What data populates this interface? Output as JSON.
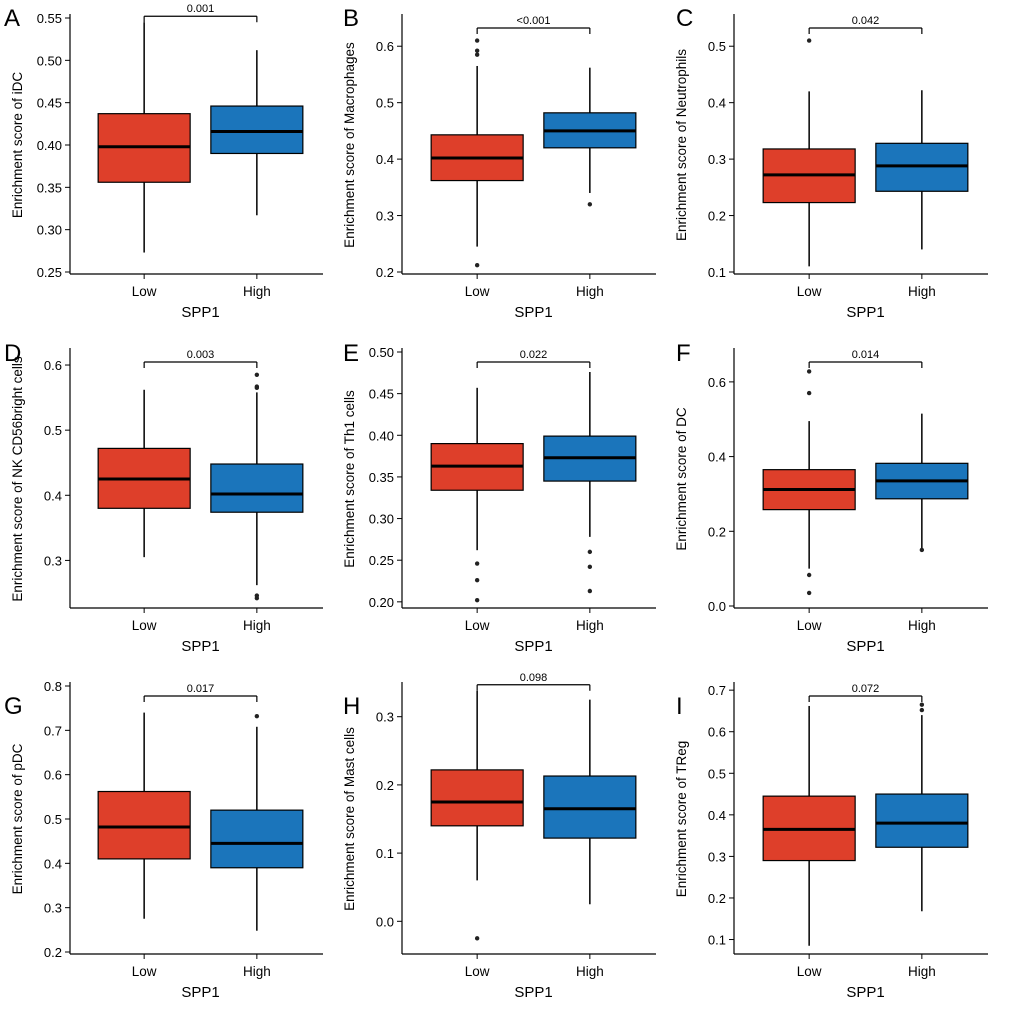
{
  "figure": {
    "colors": {
      "low": "#de3f2a",
      "high": "#1b75bb",
      "outline": "#000000"
    }
  },
  "chart_data": [
    {
      "type": "box",
      "panel_label": "A",
      "ylabel": "Enrichment score of iDC",
      "xlabel": "SPP1",
      "categories": [
        "Low",
        "High"
      ],
      "ylim": [
        0.25,
        0.55
      ],
      "yticks": [
        "0.25",
        "0.30",
        "0.35",
        "0.40",
        "0.45",
        "0.50",
        "0.55"
      ],
      "pvalue": "0.001",
      "boxes": [
        {
          "group": "Low",
          "min": 0.273,
          "q1": 0.356,
          "median": 0.398,
          "q3": 0.437,
          "max": 0.545,
          "outliers": []
        },
        {
          "group": "High",
          "min": 0.317,
          "q1": 0.39,
          "median": 0.416,
          "q3": 0.446,
          "max": 0.512,
          "outliers": []
        }
      ]
    },
    {
      "type": "box",
      "panel_label": "B",
      "ylabel": "Enrichment score of Macrophages",
      "xlabel": "SPP1",
      "categories": [
        "Low",
        "High"
      ],
      "ylim": [
        0.2,
        0.65
      ],
      "yticks": [
        "0.2",
        "0.3",
        "0.4",
        "0.5",
        "0.6"
      ],
      "pvalue": "<0.001",
      "boxes": [
        {
          "group": "Low",
          "min": 0.245,
          "q1": 0.362,
          "median": 0.402,
          "q3": 0.443,
          "max": 0.565,
          "outliers": [
            0.212,
            0.585,
            0.592,
            0.61
          ]
        },
        {
          "group": "High",
          "min": 0.34,
          "q1": 0.42,
          "median": 0.45,
          "q3": 0.482,
          "max": 0.562,
          "outliers": [
            0.32
          ]
        }
      ]
    },
    {
      "type": "box",
      "panel_label": "C",
      "ylabel": "Enrichment score of Neutrophils",
      "xlabel": "SPP1",
      "categories": [
        "Low",
        "High"
      ],
      "ylim": [
        0.1,
        0.55
      ],
      "yticks": [
        "0.1",
        "0.2",
        "0.3",
        "0.4",
        "0.5"
      ],
      "pvalue": "0.042",
      "boxes": [
        {
          "group": "Low",
          "min": 0.11,
          "q1": 0.223,
          "median": 0.272,
          "q3": 0.318,
          "max": 0.42,
          "outliers": [
            0.51
          ]
        },
        {
          "group": "High",
          "min": 0.14,
          "q1": 0.243,
          "median": 0.288,
          "q3": 0.328,
          "max": 0.422,
          "outliers": []
        }
      ]
    },
    {
      "type": "box",
      "panel_label": "D",
      "ylabel": "Enrichment score of NK CD56bright cells",
      "xlabel": "SPP1",
      "categories": [
        "Low",
        "High"
      ],
      "ylim": [
        0.23,
        0.62
      ],
      "yticks": [
        "0.3",
        "0.4",
        "0.5",
        "0.6"
      ],
      "pvalue": "0.003",
      "boxes": [
        {
          "group": "Low",
          "min": 0.305,
          "q1": 0.38,
          "median": 0.425,
          "q3": 0.472,
          "max": 0.562,
          "outliers": []
        },
        {
          "group": "High",
          "min": 0.262,
          "q1": 0.374,
          "median": 0.402,
          "q3": 0.448,
          "max": 0.558,
          "outliers": [
            0.242,
            0.246,
            0.565,
            0.567,
            0.585
          ]
        }
      ]
    },
    {
      "type": "box",
      "panel_label": "E",
      "ylabel": "Enrichment score of Th1 cells",
      "xlabel": "SPP1",
      "categories": [
        "Low",
        "High"
      ],
      "ylim": [
        0.195,
        0.5
      ],
      "yticks": [
        "0.20",
        "0.25",
        "0.30",
        "0.35",
        "0.40",
        "0.45",
        "0.50"
      ],
      "pvalue": "0.022",
      "boxes": [
        {
          "group": "Low",
          "min": 0.262,
          "q1": 0.334,
          "median": 0.363,
          "q3": 0.39,
          "max": 0.457,
          "outliers": [
            0.202,
            0.226,
            0.246
          ]
        },
        {
          "group": "High",
          "min": 0.278,
          "q1": 0.345,
          "median": 0.373,
          "q3": 0.399,
          "max": 0.476,
          "outliers": [
            0.213,
            0.242,
            0.26
          ]
        }
      ]
    },
    {
      "type": "box",
      "panel_label": "F",
      "ylabel": "Enrichment score of DC",
      "xlabel": "SPP1",
      "categories": [
        "Low",
        "High"
      ],
      "ylim": [
        0.0,
        0.68
      ],
      "yticks": [
        "0.0",
        "0.2",
        "0.4",
        "0.6"
      ],
      "pvalue": "0.014",
      "boxes": [
        {
          "group": "Low",
          "min": 0.1,
          "q1": 0.258,
          "median": 0.312,
          "q3": 0.365,
          "max": 0.495,
          "outliers": [
            0.035,
            0.083,
            0.57,
            0.628
          ]
        },
        {
          "group": "High",
          "min": 0.153,
          "q1": 0.287,
          "median": 0.335,
          "q3": 0.382,
          "max": 0.515,
          "outliers": [
            0.15
          ]
        }
      ]
    },
    {
      "type": "box",
      "panel_label": "G",
      "ylabel": "Enrichment score of pDC",
      "xlabel": "SPP1",
      "categories": [
        "Low",
        "High"
      ],
      "ylim": [
        0.2,
        0.8
      ],
      "yticks": [
        "0.2",
        "0.3",
        "0.4",
        "0.5",
        "0.6",
        "0.7",
        "0.8"
      ],
      "pvalue": "0.017",
      "boxes": [
        {
          "group": "Low",
          "min": 0.275,
          "q1": 0.41,
          "median": 0.482,
          "q3": 0.562,
          "max": 0.74,
          "outliers": []
        },
        {
          "group": "High",
          "min": 0.248,
          "q1": 0.39,
          "median": 0.445,
          "q3": 0.52,
          "max": 0.708,
          "outliers": [
            0.732
          ]
        }
      ]
    },
    {
      "type": "box",
      "panel_label": "H",
      "ylabel": "Enrichment score of Mast cells",
      "xlabel": "SPP1",
      "categories": [
        "Low",
        "High"
      ],
      "ylim": [
        -0.045,
        0.345
      ],
      "yticks": [
        "0.0",
        "0.1",
        "0.2",
        "0.3"
      ],
      "pvalue": "0.098",
      "boxes": [
        {
          "group": "Low",
          "min": 0.06,
          "q1": 0.14,
          "median": 0.175,
          "q3": 0.222,
          "max": 0.338,
          "outliers": [
            -0.025
          ]
        },
        {
          "group": "High",
          "min": 0.025,
          "q1": 0.122,
          "median": 0.165,
          "q3": 0.213,
          "max": 0.325,
          "outliers": []
        }
      ]
    },
    {
      "type": "box",
      "panel_label": "I",
      "ylabel": "Enrichment score of TReg",
      "xlabel": "SPP1",
      "categories": [
        "Low",
        "High"
      ],
      "ylim": [
        0.07,
        0.71
      ],
      "yticks": [
        "0.1",
        "0.2",
        "0.3",
        "0.4",
        "0.5",
        "0.6",
        "0.7"
      ],
      "pvalue": "0.072",
      "boxes": [
        {
          "group": "Low",
          "min": 0.085,
          "q1": 0.29,
          "median": 0.365,
          "q3": 0.445,
          "max": 0.662,
          "outliers": []
        },
        {
          "group": "High",
          "min": 0.168,
          "q1": 0.322,
          "median": 0.38,
          "q3": 0.45,
          "max": 0.64,
          "outliers": [
            0.652,
            0.665
          ]
        }
      ]
    }
  ]
}
